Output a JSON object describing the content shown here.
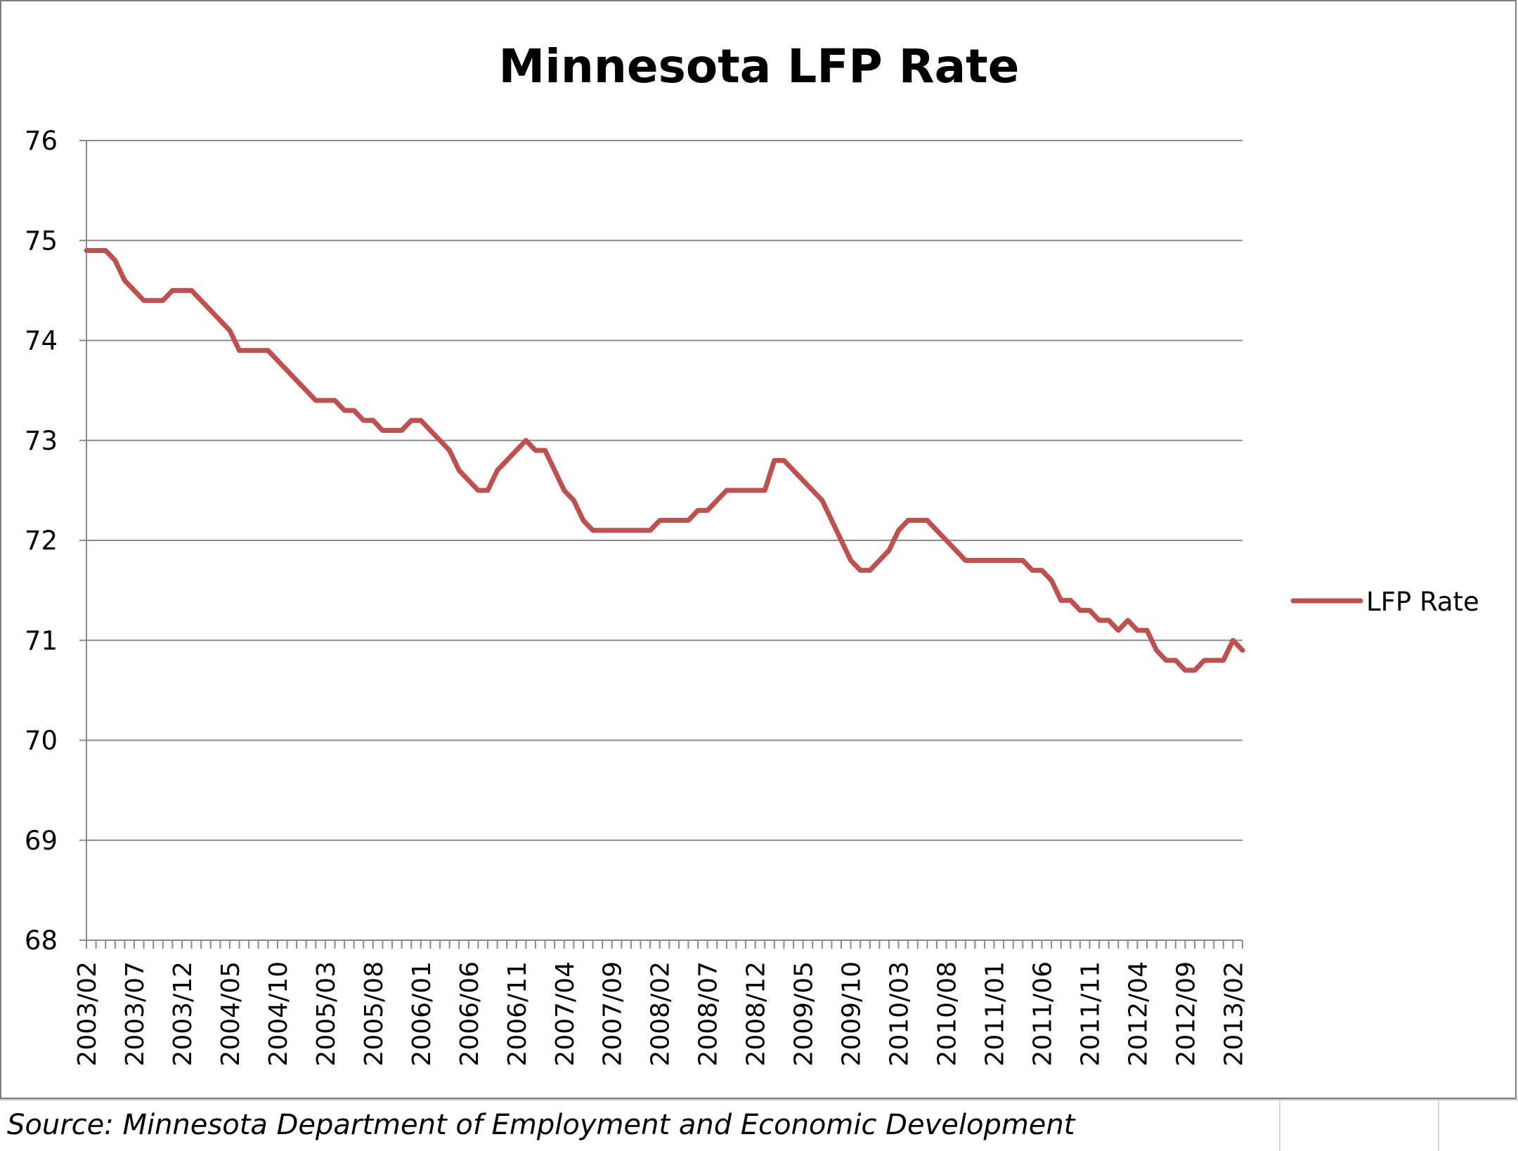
{
  "chart_data": {
    "type": "line",
    "title": "Minnesota LFP Rate",
    "xlabel": "",
    "ylabel": "",
    "ylim": [
      68,
      76
    ],
    "yticks": [
      "68",
      "69",
      "70",
      "71",
      "72",
      "73",
      "74",
      "75",
      "76"
    ],
    "start_month": "2003/02",
    "xtick_labels": [
      "2003/02",
      "2003/07",
      "2003/12",
      "2004/05",
      "2004/10",
      "2005/03",
      "2005/08",
      "2006/01",
      "2006/06",
      "2006/11",
      "2007/04",
      "2007/09",
      "2008/02",
      "2008/07",
      "2008/12",
      "2009/05",
      "2009/10",
      "2010/03",
      "2010/08",
      "2011/01",
      "2011/06",
      "2011/11",
      "2012/04",
      "2012/09",
      "2013/02"
    ],
    "grid": true,
    "legend_position": "right",
    "series": [
      {
        "name": "LFP Rate",
        "color": "#c0504d",
        "values": [
          74.9,
          74.9,
          74.9,
          74.8,
          74.6,
          74.5,
          74.4,
          74.4,
          74.4,
          74.5,
          74.5,
          74.5,
          74.4,
          74.3,
          74.2,
          74.1,
          73.9,
          73.9,
          73.9,
          73.9,
          73.8,
          73.7,
          73.6,
          73.5,
          73.4,
          73.4,
          73.4,
          73.3,
          73.3,
          73.2,
          73.2,
          73.1,
          73.1,
          73.1,
          73.2,
          73.2,
          73.1,
          73.0,
          72.9,
          72.7,
          72.6,
          72.5,
          72.5,
          72.7,
          72.8,
          72.9,
          73.0,
          72.9,
          72.9,
          72.7,
          72.5,
          72.4,
          72.2,
          72.1,
          72.1,
          72.1,
          72.1,
          72.1,
          72.1,
          72.1,
          72.2,
          72.2,
          72.2,
          72.2,
          72.3,
          72.3,
          72.4,
          72.5,
          72.5,
          72.5,
          72.5,
          72.5,
          72.8,
          72.8,
          72.7,
          72.6,
          72.5,
          72.4,
          72.2,
          72.0,
          71.8,
          71.7,
          71.7,
          71.8,
          71.9,
          72.1,
          72.2,
          72.2,
          72.2,
          72.1,
          72.0,
          71.9,
          71.8,
          71.8,
          71.8,
          71.8,
          71.8,
          71.8,
          71.8,
          71.7,
          71.7,
          71.6,
          71.4,
          71.4,
          71.3,
          71.3,
          71.2,
          71.2,
          71.1,
          71.2,
          71.1,
          71.1,
          70.9,
          70.8,
          70.8,
          70.7,
          70.7,
          70.8,
          70.8,
          70.8,
          71.0,
          70.9
        ]
      }
    ]
  },
  "footer": {
    "source": "Source: Minnesota Department of Employment and Economic Development"
  }
}
